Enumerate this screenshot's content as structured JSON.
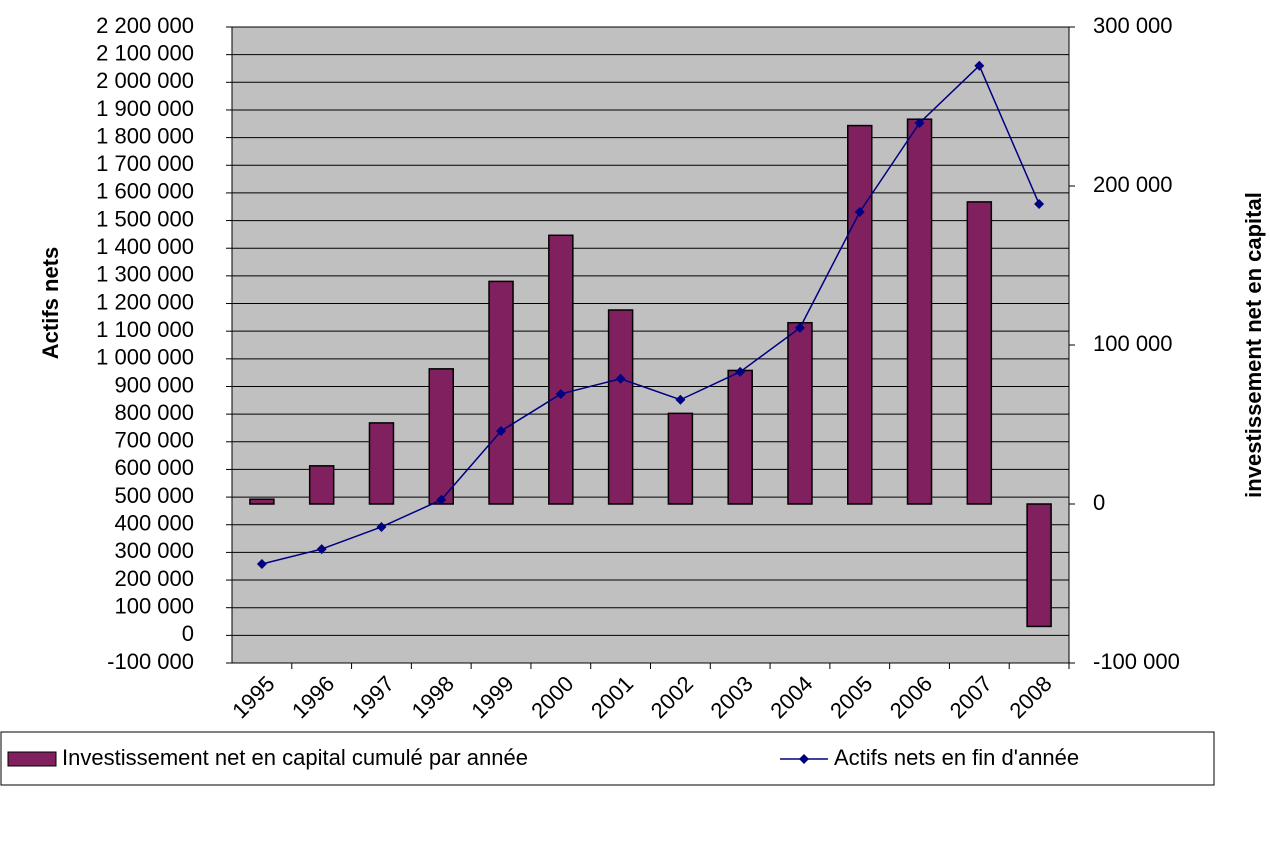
{
  "chart_data": {
    "type": "bar_line",
    "y_label": "Actifs nets",
    "y2_label": "investissement net en capital",
    "categories": [
      "1995",
      "1996",
      "1997",
      "1998",
      "1999",
      "2000",
      "2001",
      "2002",
      "2003",
      "2004",
      "2005",
      "2006",
      "2007",
      "2008"
    ],
    "series": [
      {
        "name": "Investissement net en capital cumulé par année",
        "type": "bar",
        "axis": "y2",
        "color": "#80205f",
        "values": [
          3000,
          24000,
          51000,
          85000,
          140000,
          169000,
          122000,
          57000,
          84000,
          114000,
          238000,
          242000,
          190000,
          -77000
        ]
      },
      {
        "name": "Actifs nets en fin d'année",
        "type": "line",
        "axis": "y",
        "color": "#000080",
        "values": [
          258000,
          312000,
          392000,
          490000,
          739000,
          873000,
          928000,
          852000,
          953000,
          1112000,
          1531000,
          1853000,
          2060000,
          1560000
        ]
      }
    ],
    "ylim": [
      -100000,
      2200000
    ],
    "yticks": [
      {
        "value": -100000,
        "label": "-100 000"
      },
      0,
      {
        "value": 100000,
        "label": "100 000"
      },
      {
        "value": 200000,
        "label": "200 000"
      },
      {
        "value": 300000,
        "label": "300 000"
      },
      {
        "value": 400000,
        "label": "400 000"
      },
      {
        "value": 500000,
        "label": "500 000"
      },
      {
        "value": 600000,
        "label": "600 000"
      },
      {
        "value": 700000,
        "label": "700 000"
      },
      {
        "value": 800000,
        "label": "800 000"
      },
      {
        "value": 900000,
        "label": "900 000"
      },
      {
        "value": 1000000,
        "label": "1 000 000"
      },
      {
        "value": 1100000,
        "label": "1 100 000"
      },
      {
        "value": 1200000,
        "label": "1 200 000"
      },
      {
        "value": 1300000,
        "label": "1 300 000"
      },
      {
        "value": 1400000,
        "label": "1 400 000"
      },
      {
        "value": 1500000,
        "label": "1 500 000"
      },
      {
        "value": 1600000,
        "label": "1 600 000"
      },
      {
        "value": 1700000,
        "label": "1 700 000"
      },
      {
        "value": 1800000,
        "label": "1 800 000"
      },
      {
        "value": 1900000,
        "label": "1 900 000"
      },
      {
        "value": 2000000,
        "label": "2 000 000"
      },
      {
        "value": 2100000,
        "label": "2 100 000"
      },
      {
        "value": 2200000,
        "label": "2 200 000"
      }
    ],
    "y2lim": [
      -100000,
      300000
    ],
    "y2ticks": [
      {
        "value": -100000,
        "label": "-100 000"
      },
      0,
      {
        "value": 100000,
        "label": "100 000"
      },
      {
        "value": 200000,
        "label": "200 000"
      },
      {
        "value": 300000,
        "label": "300 000"
      }
    ],
    "grid": true,
    "legend": "bottom"
  }
}
